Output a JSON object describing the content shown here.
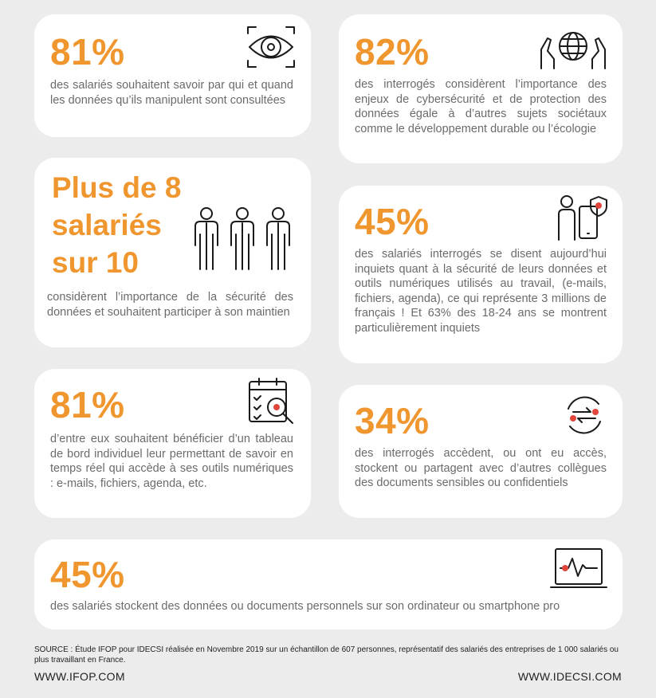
{
  "cards": [
    {
      "stat": "81%",
      "text": "des salariés souhaitent savoir par qui et quand les données qu’ils manipulent sont consultées"
    },
    {
      "stat": "82%",
      "text": "des interrogés considèrent l’importance des enjeux de cybersécurité et de protection des données égale à d’autres sujets sociétaux comme le développement durable ou l’écologie"
    },
    {
      "stat_lines": [
        "Plus de 8",
        "salariés",
        "sur 10"
      ],
      "text": "considèrent l’importance de la sécurité des données et souhaitent participer à son maintien"
    },
    {
      "stat": "45%",
      "text": "des salariés interrogés se disent aujourd’hui inquiets quant à la sécurité de leurs données et outils numériques utilisés au travail, (e-mails, fichiers, agenda), ce qui représente 3 millions de français ! Et 63% des 18-24 ans  se montrent particulièrement inquiets"
    },
    {
      "stat": "81%",
      "text": "d’entre eux souhaitent bénéficier d’un tableau de bord individuel leur permettant de savoir en temps réel qui accède à ses outils numériques : e-mails, fichiers, agenda, etc."
    },
    {
      "stat": "34%",
      "text": "des interrogés accèdent, ou ont eu accès, stockent ou partagent avec d’autres collègues des documents sensibles ou confidentiels"
    },
    {
      "stat": "45%",
      "text": "des salariés stockent des données ou documents personnels sur son ordinateur ou smartphone pro"
    }
  ],
  "footer": {
    "source": "SOURCE : Étude IFOP pour IDECSI réalisée en Novembre 2019 sur un échantillon de 607 personnes, représentatif des salariés des entreprises de 1 000 salariés ou plus travaillant en France.",
    "left_url": "WWW.IFOP.COM",
    "right_url": "WWW.IDECSI.COM"
  }
}
